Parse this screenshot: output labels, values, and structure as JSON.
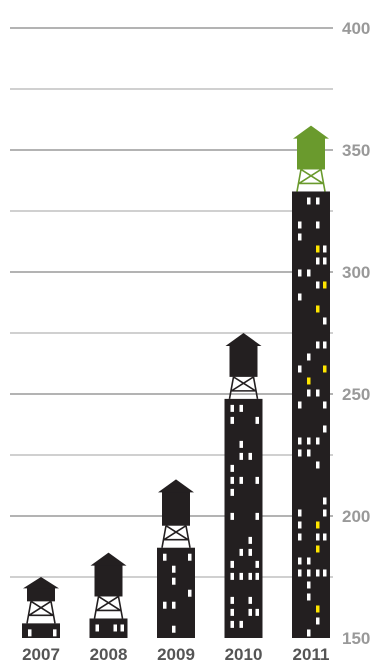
{
  "chart_data": {
    "type": "bar",
    "title": "",
    "xlabel": "",
    "ylabel": "",
    "categories": [
      "2007",
      "2008",
      "2009",
      "2010",
      "2011"
    ],
    "values": [
      156,
      158,
      187,
      248,
      333
    ],
    "tank_heights": [
      175,
      185,
      215,
      275,
      360
    ],
    "ylim": [
      150,
      400
    ],
    "yticks": [
      150,
      200,
      250,
      300,
      350,
      400
    ],
    "grid": true,
    "minor_grid_step": 25,
    "colors": {
      "building": "#231f20",
      "window": "#ffffff",
      "lit_window": "#ffe600",
      "tank": "#231f20",
      "highlight_tank": "#6a9a2d",
      "grid": "#b3b3b3"
    },
    "highlight_category": "2011"
  }
}
